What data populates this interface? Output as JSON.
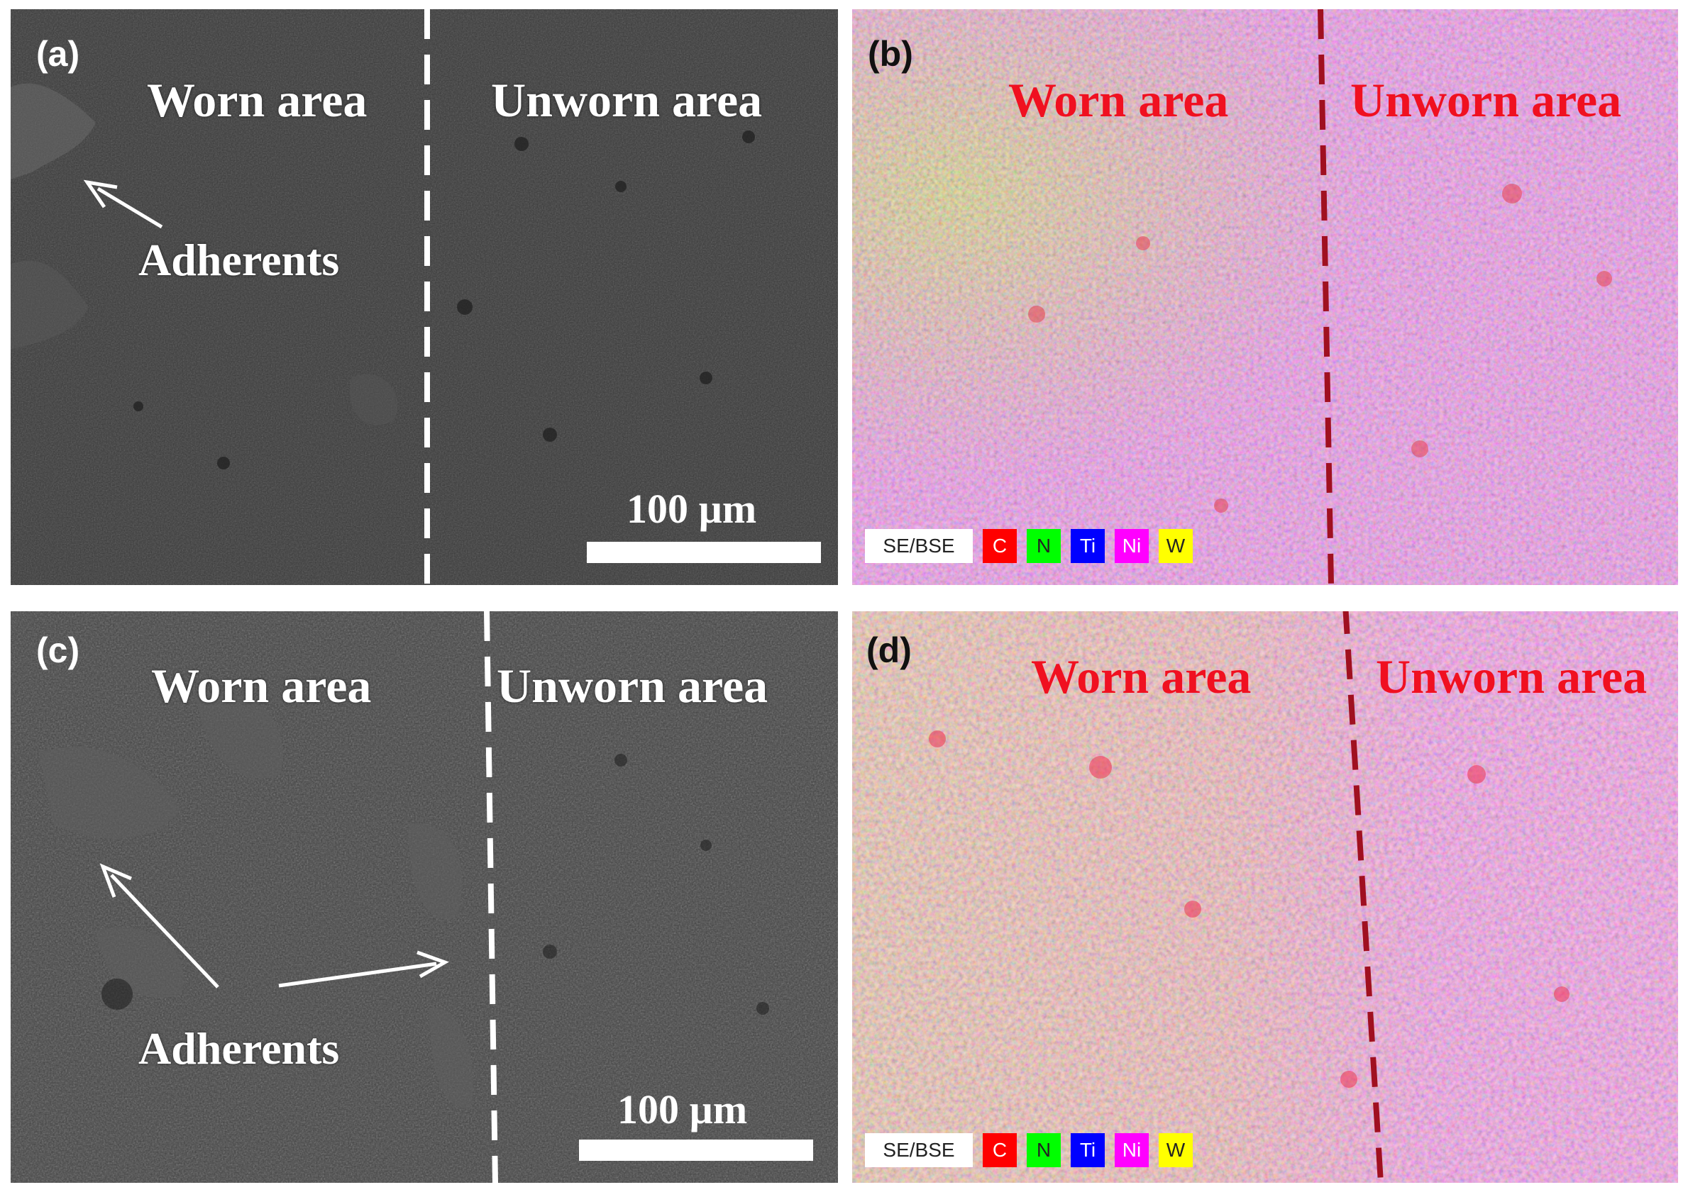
{
  "panels": {
    "a": {
      "tag": "(a)",
      "worn": "Worn area",
      "unworn": "Unworn area",
      "adherents": "Adherents",
      "scale": "100 µm"
    },
    "b": {
      "tag": "(b)",
      "worn": "Worn area",
      "unworn": "Unworn area"
    },
    "c": {
      "tag": "(c)",
      "worn": "Worn area",
      "unworn": "Unworn area",
      "adherents": "Adherents",
      "scale": "100 µm"
    },
    "d": {
      "tag": "(d)",
      "worn": "Worn area",
      "unworn": "Unworn area"
    }
  },
  "legend": {
    "items": [
      {
        "label": "SE/BSE",
        "color": "#ffffff",
        "text_color": "#222222"
      },
      {
        "label": "C",
        "color": "#ff0000",
        "text_color": "#ffffff"
      },
      {
        "label": "N",
        "color": "#00ff00",
        "text_color": "#222222"
      },
      {
        "label": "Ti",
        "color": "#0000ff",
        "text_color": "#ffffff"
      },
      {
        "label": "Ni",
        "color": "#ff00ff",
        "text_color": "#ffffff"
      },
      {
        "label": "W",
        "color": "#ffff00",
        "text_color": "#222222"
      }
    ]
  },
  "colors": {
    "sem_dark": "#3c3c3c",
    "map_magenta": "#e898e6",
    "boundary_dash_sem": "#ffffff",
    "boundary_dash_map": "#a01020",
    "region_label_map": "#f01020"
  }
}
